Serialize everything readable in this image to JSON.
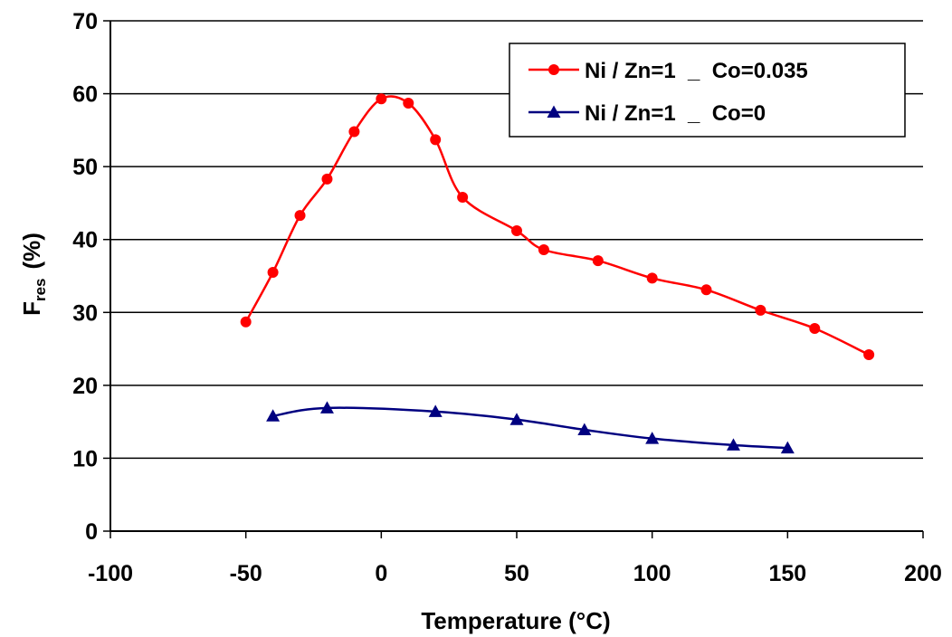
{
  "chart_data": {
    "type": "line",
    "xlabel": "Temperature (°C)",
    "ylabel_main": "F",
    "ylabel_sub": "res",
    "ylabel_unit": "(%)",
    "xlim": [
      -100,
      200
    ],
    "ylim": [
      0,
      70
    ],
    "x_ticks": [
      "-100",
      "-50",
      "0",
      "50",
      "100",
      "150",
      "200"
    ],
    "y_ticks": [
      "0",
      "10",
      "20",
      "30",
      "40",
      "50",
      "60",
      "70"
    ],
    "grid": "horizontal",
    "legend_position": "top-right",
    "series": [
      {
        "name": "Ni / Zn=1  _  Co=0.035",
        "color": "#ff0000",
        "marker": "circle",
        "x": [
          -50,
          -40,
          -30,
          -20,
          -10,
          0,
          10,
          20,
          30,
          50,
          60,
          80,
          100,
          120,
          140,
          160,
          180
        ],
        "y": [
          28.7,
          35.5,
          43.3,
          48.3,
          54.8,
          59.3,
          58.7,
          53.7,
          45.8,
          41.2,
          38.6,
          37.1,
          34.7,
          33.1,
          30.3,
          27.8,
          24.2
        ]
      },
      {
        "name": "Ni / Zn=1  _  Co=0",
        "color": "#000080",
        "marker": "triangle",
        "x": [
          -40,
          -20,
          20,
          50,
          75,
          100,
          130,
          150
        ],
        "y": [
          15.8,
          16.9,
          16.4,
          15.3,
          13.9,
          12.7,
          11.8,
          11.4
        ]
      }
    ]
  }
}
